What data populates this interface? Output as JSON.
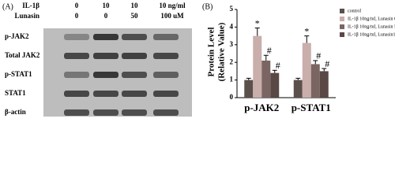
{
  "panel_a": {
    "label": "(A)",
    "treatments": [
      {
        "name": "IL-1β",
        "values": [
          "0",
          "10",
          "10",
          "10 ng/ml"
        ]
      },
      {
        "name": "Lunasin",
        "values": [
          "0",
          "0",
          "50",
          "100 uM"
        ]
      }
    ],
    "blots": [
      "p-JAK2",
      "Total JAK2",
      "p-STAT1",
      "STAT1",
      "β-actin"
    ]
  },
  "chart_data": {
    "type": "bar",
    "label": "(B)",
    "ylabel": [
      "Protein Level",
      "(Relative Value)"
    ],
    "categories": [
      "p-JAK2",
      "p-STAT1"
    ],
    "ylim": [
      0,
      5
    ],
    "yticks": [
      0,
      1,
      2,
      3,
      4,
      5
    ],
    "series": [
      {
        "name": "control",
        "color": "#5c504b",
        "values": [
          1.0,
          1.0
        ],
        "errors": [
          0.1,
          0.1
        ]
      },
      {
        "name": "IL-1β 10ng/ml, Lunasin 0uM",
        "color": "#c9aeac",
        "values": [
          3.5,
          3.1
        ],
        "errors": [
          0.45,
          0.4
        ],
        "annotations": [
          "*",
          "*"
        ]
      },
      {
        "name": "IL-1β 10ng/ml, Lunasin 50uM",
        "color": "#7a6562",
        "values": [
          2.1,
          1.9
        ],
        "errors": [
          0.3,
          0.2
        ],
        "annotations": [
          "#",
          "#"
        ]
      },
      {
        "name": "IL-1β 10ng/ml, Lunasin100 uM",
        "color": "#5a4846",
        "values": [
          1.4,
          1.5
        ],
        "errors": [
          0.15,
          0.15
        ],
        "annotations": [
          "#",
          "#"
        ]
      }
    ]
  }
}
